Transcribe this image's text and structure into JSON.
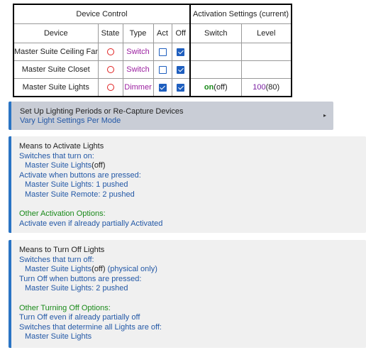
{
  "table": {
    "group_headers": {
      "device_control": "Device Control",
      "activation_settings": "Activation Settings (current)"
    },
    "column_headers": [
      "Device",
      "State",
      "Type",
      "Act",
      "Off",
      "Switch",
      "Level"
    ],
    "rows": [
      {
        "device": "Master Suite Ceiling Fan",
        "state": "off",
        "type": "Switch",
        "act": false,
        "off": true,
        "switch_on": "",
        "switch_paren": "",
        "level": "",
        "level_paren": ""
      },
      {
        "device": "Master Suite Closet",
        "state": "off",
        "type": "Switch",
        "act": false,
        "off": true,
        "switch_on": "",
        "switch_paren": "",
        "level": "",
        "level_paren": ""
      },
      {
        "device": "Master Suite Lights",
        "state": "off",
        "type": "Dimmer",
        "act": true,
        "off": true,
        "switch_on": "on",
        "switch_paren": "(off)",
        "level": "100",
        "level_paren": "(80)"
      }
    ]
  },
  "setup_panel": {
    "title": "Set Up Lighting Periods or Re-Capture Devices",
    "subtitle": "Vary Light Settings Per Mode",
    "arrow": "▸"
  },
  "activate_panel": {
    "heading": "Means to Activate Lights",
    "switches_label": "Switches that turn on:",
    "switch_item": "Master Suite Lights",
    "switch_item_state": "(off)",
    "buttons_label": "Activate when buttons are pressed:",
    "button_items": [
      "Master Suite Lights: 1 pushed",
      "Master Suite Remote: 2 pushed"
    ],
    "other_label": "Other Activation Options:",
    "other_item": "Activate even if already partially Activated"
  },
  "off_panel": {
    "heading": "Means to Turn Off Lights",
    "switches_label": "Switches that turn off:",
    "switch_item": "Master Suite Lights",
    "switch_item_state": "(off)",
    "switch_item_note": " (physical only)",
    "buttons_label": "Turn Off when buttons are pressed:",
    "button_item": "Master Suite Lights: 2 pushed",
    "other_label": "Other Turning Off Options:",
    "other_item": "Turn Off even if already partially off",
    "all_off_label": "Switches that determine all Lights are off:",
    "all_off_item": "Master Suite Lights"
  },
  "colors": {
    "accent_blue": "#2a74c4",
    "link_blue": "#2358a6",
    "type_purple": "#9b1fa0",
    "level_purple": "#7b1fa2",
    "state_red": "#e02020",
    "green": "#1a8a1a",
    "setup_bg": "#c9cdd6",
    "panel_bg": "#f0f0f0"
  }
}
